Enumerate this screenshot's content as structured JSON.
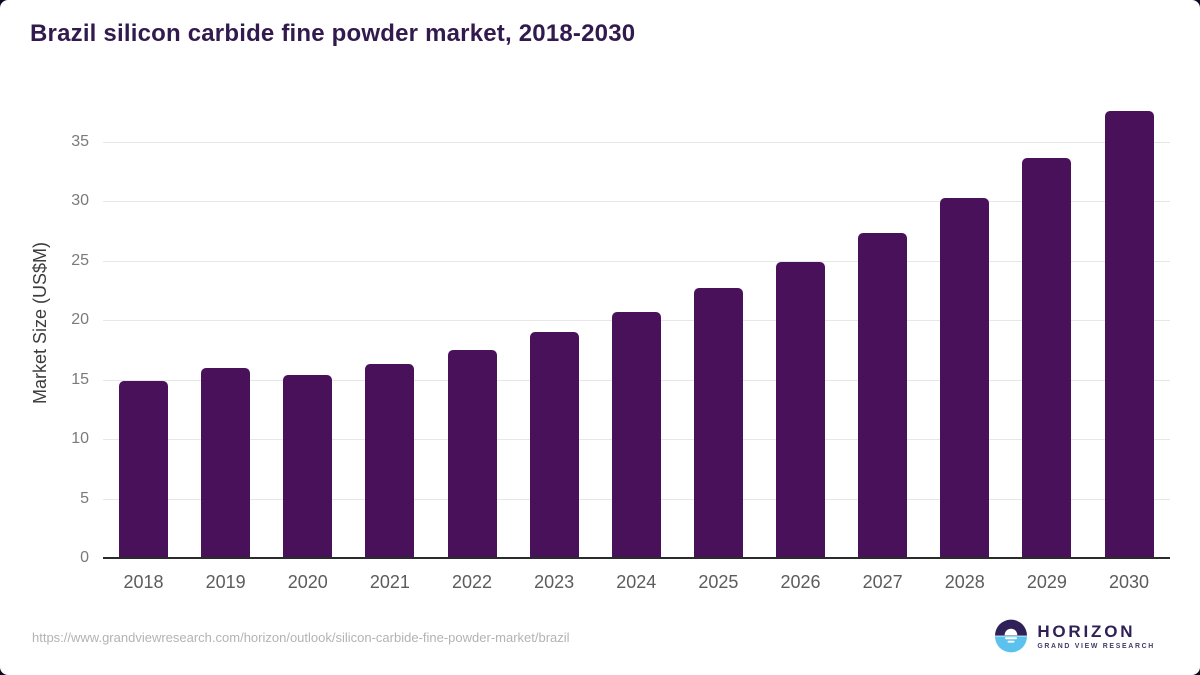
{
  "chart_data": {
    "type": "bar",
    "title": "Brazil silicon carbide fine powder market, 2018-2030",
    "categories": [
      "2018",
      "2019",
      "2020",
      "2021",
      "2022",
      "2023",
      "2024",
      "2025",
      "2026",
      "2027",
      "2028",
      "2029",
      "2030"
    ],
    "values": [
      14.9,
      16.0,
      15.4,
      16.3,
      17.5,
      19.0,
      20.7,
      22.7,
      24.9,
      27.3,
      30.3,
      33.6,
      37.6
    ],
    "xlabel": "",
    "ylabel": "Market Size (US$M)",
    "ylim": [
      0,
      38.5
    ],
    "yticks": [
      0,
      5,
      10,
      15,
      20,
      25,
      30,
      35
    ],
    "grid": true,
    "legend": "none",
    "bar_color": "#481159"
  },
  "footer": {
    "source_url": "https://www.grandviewresearch.com/horizon/outlook/silicon-carbide-fine-powder-market/brazil",
    "logo": {
      "brand": "HORIZON",
      "tagline": "GRAND VIEW RESEARCH",
      "icon": "horizon-sun-icon",
      "icon_dark_color": "#2f2157",
      "icon_blue_color": "#5bc2ee"
    }
  },
  "colors": {
    "title_text": "#321a4e",
    "bar": "#481159",
    "axis_line": "#2b2b2b",
    "gridline": "#e7e7e7",
    "y_tick_text": "#7a7a7a",
    "x_tick_text": "#5c5c5c",
    "url_text": "#b3b3b3",
    "card_background": "#ffffff",
    "outer_background": "#10081f"
  }
}
